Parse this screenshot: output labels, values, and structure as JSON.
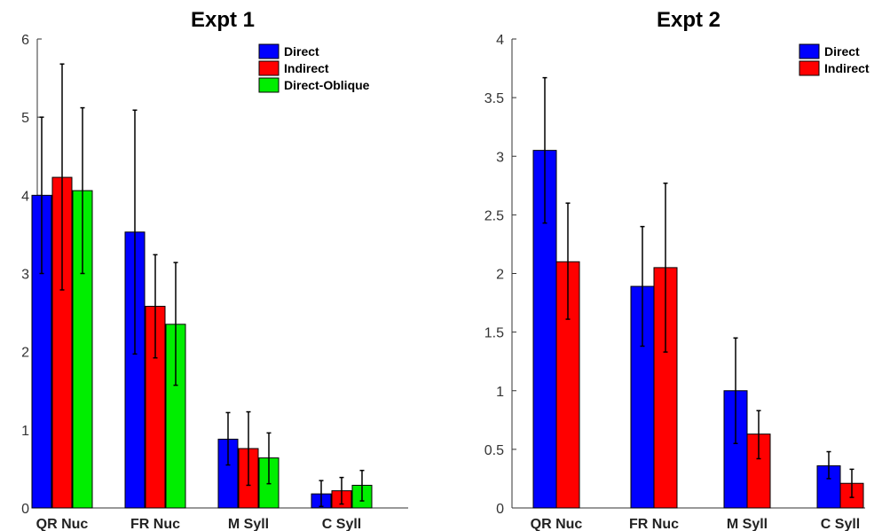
{
  "chart_data": [
    {
      "type": "bar",
      "title": "Expt 1",
      "xlabel": "",
      "ylabel": "",
      "ylim": [
        0,
        6
      ],
      "yticks": [
        0,
        1,
        2,
        3,
        4,
        5,
        6
      ],
      "ytick_labels": [
        "0",
        "1",
        "2",
        "3",
        "4",
        "5",
        "6"
      ],
      "categories": [
        "QR Nuc",
        "FR Nuc",
        "M Syll",
        "C Syll"
      ],
      "series": [
        {
          "name": "Direct",
          "color": "#0000ff",
          "values": [
            4.0,
            3.53,
            0.88,
            0.18
          ],
          "err_low": [
            3.0,
            1.97,
            0.55,
            0.02
          ],
          "err_high": [
            5.0,
            5.09,
            1.22,
            0.35
          ]
        },
        {
          "name": "Indirect",
          "color": "#ff0000",
          "values": [
            4.23,
            2.58,
            0.76,
            0.22
          ],
          "err_low": [
            2.79,
            1.92,
            0.29,
            0.05
          ],
          "err_high": [
            5.68,
            3.24,
            1.23,
            0.39
          ]
        },
        {
          "name": "Direct-Oblique",
          "color": "#00ee00",
          "values": [
            4.06,
            2.35,
            0.64,
            0.29
          ],
          "err_low": [
            3.0,
            1.57,
            0.31,
            0.09
          ],
          "err_high": [
            5.12,
            3.14,
            0.96,
            0.48
          ]
        }
      ],
      "grid": false,
      "legend_position": "top-right"
    },
    {
      "type": "bar",
      "title": "Expt 2",
      "xlabel": "",
      "ylabel": "",
      "ylim": [
        0,
        4
      ],
      "yticks": [
        0,
        0.5,
        1,
        1.5,
        2,
        2.5,
        3,
        3.5,
        4
      ],
      "ytick_labels": [
        "0",
        "0.5",
        "1",
        "1.5",
        "2",
        "2.5",
        "3",
        "3.5",
        "4"
      ],
      "categories": [
        "QR Nuc",
        "FR Nuc",
        "M Syll",
        "C Syll"
      ],
      "series": [
        {
          "name": "Direct",
          "color": "#0000ff",
          "values": [
            3.05,
            1.89,
            1.0,
            0.36
          ],
          "err_low": [
            2.43,
            1.38,
            0.55,
            0.25
          ],
          "err_high": [
            3.67,
            2.4,
            1.45,
            0.48
          ]
        },
        {
          "name": "Indirect",
          "color": "#ff0000",
          "values": [
            2.1,
            2.05,
            0.63,
            0.21
          ],
          "err_low": [
            1.61,
            1.33,
            0.42,
            0.09
          ],
          "err_high": [
            2.6,
            2.77,
            0.83,
            0.33
          ]
        }
      ],
      "grid": false,
      "legend_position": "top-right"
    }
  ]
}
